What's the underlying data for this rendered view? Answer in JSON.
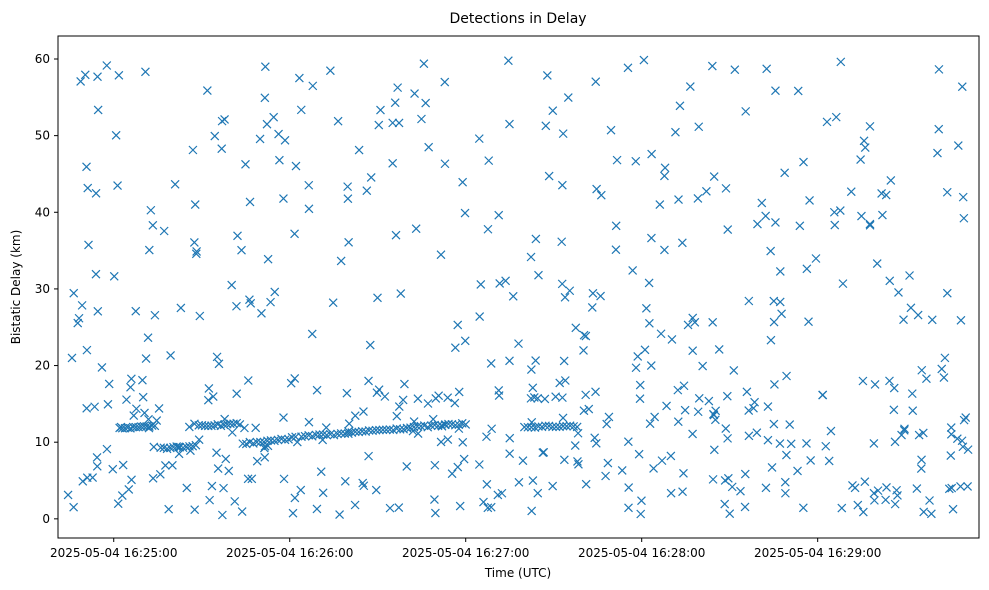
{
  "chart_data": {
    "type": "scatter",
    "title": "Detections in Delay",
    "xlabel": "Time (UTC)",
    "ylabel": "Bistatic Delay (km)",
    "marker": "x",
    "color": "#1f77b4",
    "xlim_seconds": [
      -19,
      295
    ],
    "ylim": [
      -2.5,
      63
    ],
    "x_tick_values_seconds": [
      0,
      60,
      120,
      180,
      240
    ],
    "x_tick_labels": [
      "2025-05-04 16:25:00",
      "2025-05-04 16:26:00",
      "2025-05-04 16:27:00",
      "2025-05-04 16:28:00",
      "2025-05-04 16:29:00"
    ],
    "y_ticks": [
      0,
      10,
      20,
      30,
      40,
      50,
      60
    ],
    "x_unit": "seconds after 2025-05-04 16:25:00",
    "seed": 20250504,
    "n_random_points": 560,
    "random_x_range": [
      -16,
      292
    ],
    "random_y_range": [
      0.5,
      60
    ],
    "tracks": [
      {
        "x_start": 2,
        "x_end": 14,
        "y_start": 11.8,
        "y_end": 12.2,
        "n": 14
      },
      {
        "x_start": 16,
        "x_end": 28,
        "y_start": 9.2,
        "y_end": 9.5,
        "n": 12
      },
      {
        "x_start": 29,
        "x_end": 43,
        "y_start": 12.1,
        "y_end": 12.4,
        "n": 14
      },
      {
        "x_start": 44,
        "x_end": 62,
        "y_start": 9.8,
        "y_end": 10.6,
        "n": 16
      },
      {
        "x_start": 64,
        "x_end": 80,
        "y_start": 10.7,
        "y_end": 11.2,
        "n": 14
      },
      {
        "x_start": 80,
        "x_end": 100,
        "y_start": 11.3,
        "y_end": 11.8,
        "n": 18
      },
      {
        "x_start": 100,
        "x_end": 120,
        "y_start": 11.9,
        "y_end": 12.4,
        "n": 18
      },
      {
        "x_start": 140,
        "x_end": 158,
        "y_start": 12.0,
        "y_end": 12.1,
        "n": 16
      }
    ]
  }
}
